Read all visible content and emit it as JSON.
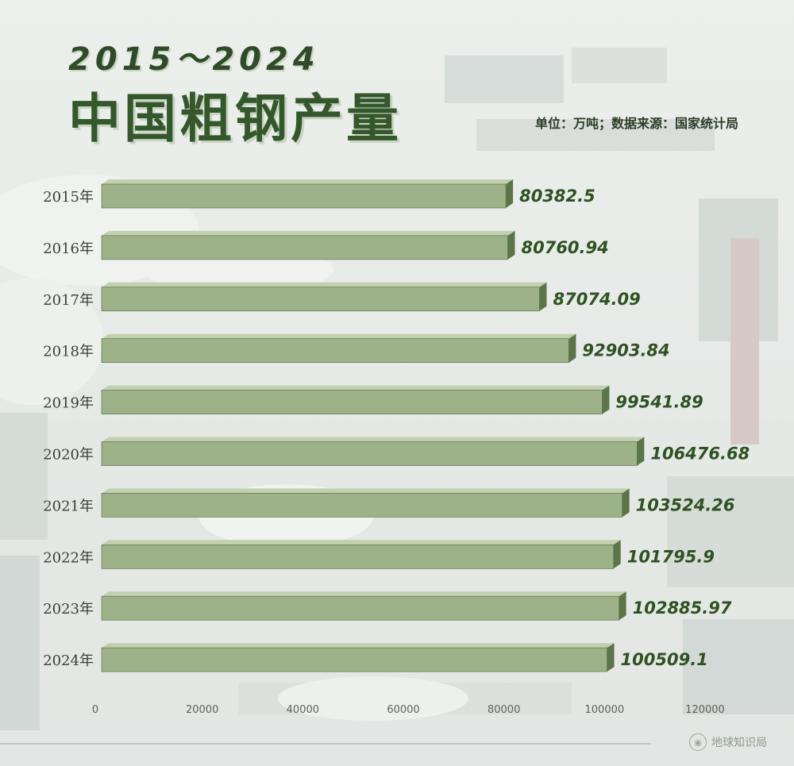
{
  "header": {
    "title_years": "2015～2024",
    "title_main": "中国粗钢产量",
    "source_note": "单位：万吨；数据来源：国家统计局"
  },
  "watermark": {
    "text": "地球知识局",
    "icon": "globe-seal-icon"
  },
  "colors": {
    "bar_front": "#9db288",
    "bar_top": "#c1d0af",
    "bar_side": "#5c7548",
    "bar_edge": "#4e6640",
    "value_label": "#2f5222",
    "title": "#35572c"
  },
  "chart_data": {
    "type": "bar",
    "orientation": "horizontal",
    "title": "中国粗钢产量",
    "subtitle": "2015～2024",
    "xlabel": "",
    "ylabel": "",
    "xlim": [
      0,
      120000
    ],
    "x_ticks": [
      "0",
      "20000",
      "40000",
      "60000",
      "80000",
      "100000",
      "120000"
    ],
    "categories": [
      "2015年",
      "2016年",
      "2017年",
      "2018年",
      "2019年",
      "2020年",
      "2021年",
      "2022年",
      "2023年",
      "2024年"
    ],
    "values": [
      80382.5,
      80760.94,
      87074.09,
      92903.84,
      99541.89,
      106476.68,
      103524.26,
      101795.9,
      102885.97,
      100509.1
    ],
    "value_labels": [
      "80382.5",
      "80760.94",
      "87074.09",
      "92903.84",
      "99541.89",
      "106476.68",
      "103524.26",
      "101795.9",
      "102885.97",
      "100509.1"
    ],
    "grid": false,
    "legend": "none"
  }
}
